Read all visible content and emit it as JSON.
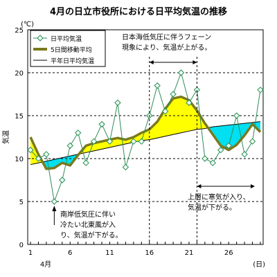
{
  "chart_data": {
    "type": "line",
    "title": "4月の日立市役所における日平均気温の推移",
    "ylabel": "気温",
    "yunit": "(℃)",
    "xunit": "(日)",
    "month_label": "4月",
    "ylim": [
      0,
      25
    ],
    "yticks": [
      0,
      5,
      10,
      15,
      20,
      25
    ],
    "xlim": [
      1,
      30
    ],
    "xticks": [
      1,
      6,
      11,
      16,
      21,
      26
    ],
    "dashed_gridlines": [
      5,
      10,
      15,
      20
    ],
    "x": [
      1,
      2,
      3,
      4,
      5,
      6,
      7,
      8,
      9,
      10,
      11,
      12,
      13,
      14,
      15,
      16,
      17,
      18,
      19,
      20,
      21,
      22,
      23,
      24,
      25,
      26,
      27,
      28,
      29,
      30
    ],
    "series": [
      {
        "name": "日平均気温",
        "style": "thin line with open diamond markers",
        "color": "#2e8b57",
        "values": [
          11.0,
          10.0,
          10.5,
          5.0,
          7.5,
          11.5,
          13.0,
          9.5,
          12.0,
          14.0,
          12.0,
          16.5,
          9.0,
          12.0,
          12.0,
          15.0,
          18.5,
          15.5,
          17.5,
          20.0,
          16.5,
          18.0,
          10.0,
          9.5,
          11.0,
          11.5,
          15.0,
          10.5,
          12.0,
          18.0
        ]
      },
      {
        "name": "5日間移動平均",
        "style": "thick olive line",
        "color": "#7a7a1e",
        "values": [
          12.5,
          10.5,
          8.8,
          8.9,
          9.5,
          9.2,
          10.4,
          11.5,
          11.8,
          12.0,
          12.2,
          12.4,
          12.2,
          12.5,
          13.0,
          13.4,
          14.3,
          15.8,
          17.0,
          17.2,
          16.8,
          15.6,
          14.1,
          12.8,
          11.5,
          11.0,
          11.6,
          12.7,
          14.0,
          13.1
        ]
      },
      {
        "name": "平年日平均気温",
        "style": "thin black line",
        "color": "#000000",
        "values": [
          9.3,
          9.5,
          9.7,
          9.9,
          10.1,
          10.3,
          10.5,
          10.7,
          10.9,
          11.1,
          11.3,
          11.5,
          11.7,
          11.9,
          12.1,
          12.2,
          12.4,
          12.6,
          12.8,
          13.0,
          13.2,
          13.4,
          13.5,
          13.7,
          13.8,
          13.9,
          14.0,
          14.1,
          14.2,
          14.3
        ]
      }
    ],
    "fill_above_normal_color": "#ffff00",
    "fill_below_normal_color": "#00e0f0",
    "annotations": [
      {
        "id": "warm",
        "lines": [
          "日本海低気圧に伴うフェーン",
          "現象により、気温が上がる。"
        ],
        "span": [
          16,
          22
        ]
      },
      {
        "id": "cold_north",
        "lines": [
          "上層に寒気が入り、",
          "気温が下がる。"
        ],
        "span": [
          22,
          30
        ]
      },
      {
        "id": "south_low",
        "lines": [
          "南岸低気圧に伴い",
          "冷たい北東風が入",
          "り、気温が下がる。"
        ],
        "day": 4
      }
    ]
  }
}
